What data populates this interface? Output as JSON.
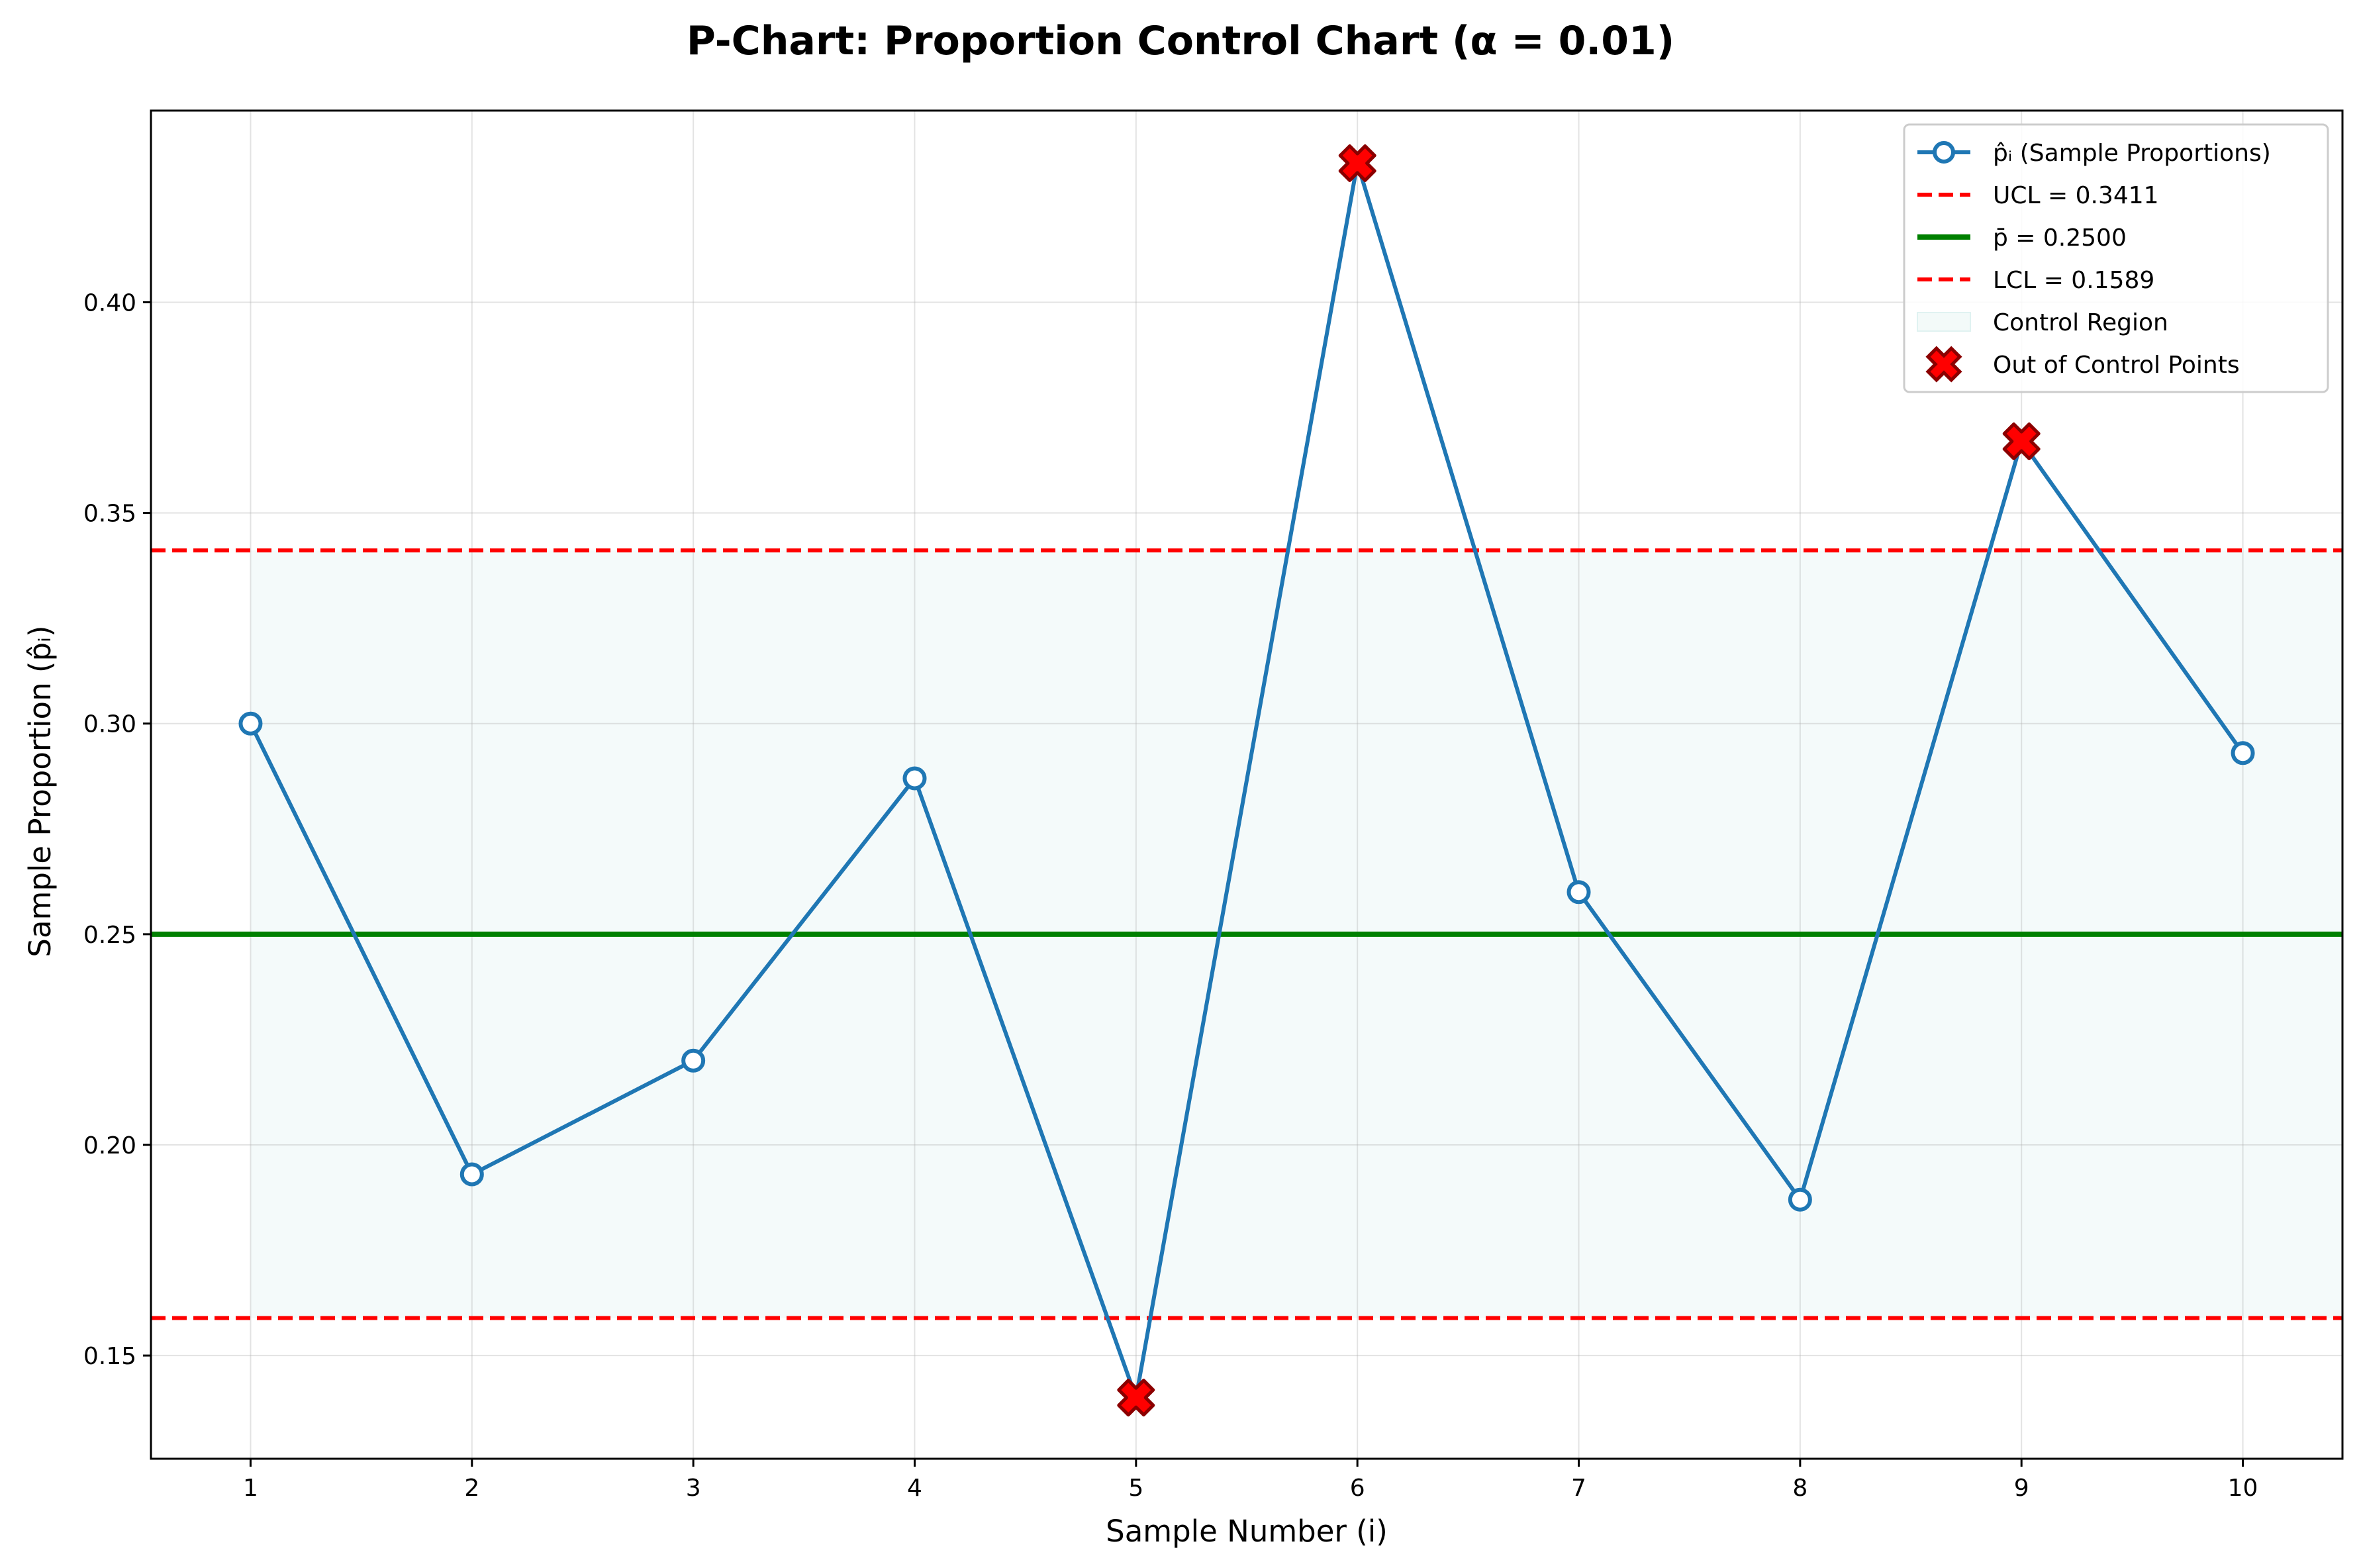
{
  "chart_data": {
    "type": "line",
    "title": "P-Chart: Proportion Control Chart (α = 0.01)",
    "xlabel": "Sample Number (i)",
    "ylabel": "Sample Proportion (p̂ᵢ)",
    "xlim": [
      0.55,
      10.45
    ],
    "ylim": [
      0.1255,
      0.4455
    ],
    "x_ticks": [
      1,
      2,
      3,
      4,
      5,
      6,
      7,
      8,
      9,
      10
    ],
    "y_ticks": [
      "0.15",
      "0.20",
      "0.25",
      "0.30",
      "0.35",
      "0.40"
    ],
    "grid": true,
    "legend_position": "top-right",
    "series": [
      {
        "name": "p̂ᵢ (Sample Proportions)",
        "color": "#1f77b4",
        "x": [
          1,
          2,
          3,
          4,
          5,
          6,
          7,
          8,
          9,
          10
        ],
        "values": [
          0.3,
          0.193,
          0.22,
          0.287,
          0.14,
          0.433,
          0.26,
          0.187,
          0.367,
          0.293
        ]
      }
    ],
    "reference_lines": [
      {
        "name": "UCL = 0.3411",
        "value": 0.3411,
        "color": "#ff0000",
        "style": "dashed"
      },
      {
        "name": "p̄ = 0.2500",
        "value": 0.25,
        "color": "#008000",
        "style": "solid"
      },
      {
        "name": "LCL = 0.1589",
        "value": 0.1589,
        "color": "#ff0000",
        "style": "dashed"
      }
    ],
    "control_region": {
      "name": "Control Region",
      "from": 0.1589,
      "to": 0.3411,
      "x_from": 1,
      "x_to": 10.45,
      "color": "#e0f2f1"
    },
    "out_of_control": {
      "name": "Out of Control Points",
      "x": [
        5,
        6,
        9
      ],
      "values": [
        0.14,
        0.433,
        0.367
      ],
      "color": "#cc0000"
    }
  }
}
